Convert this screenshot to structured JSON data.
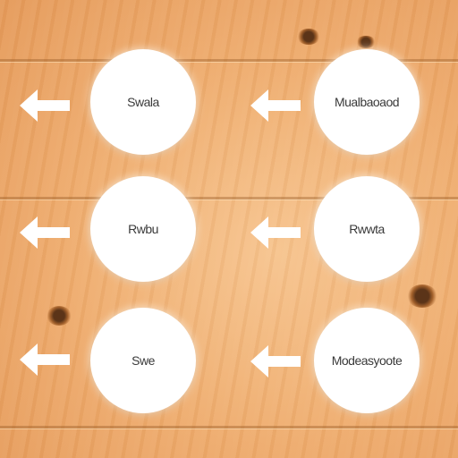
{
  "rows": [
    {
      "left_label": "Swala",
      "right_label": "Mualbaoaod"
    },
    {
      "left_label": "Rwbu",
      "right_label": "Rwwta"
    },
    {
      "left_label": "Swe",
      "right_label": "Modeasyoote"
    }
  ],
  "colors": {
    "circle_fill": "#ffffff",
    "arrow_fill": "#ffffff",
    "label_text": "#3a3a3a",
    "wood_base": "#eeab6c"
  }
}
